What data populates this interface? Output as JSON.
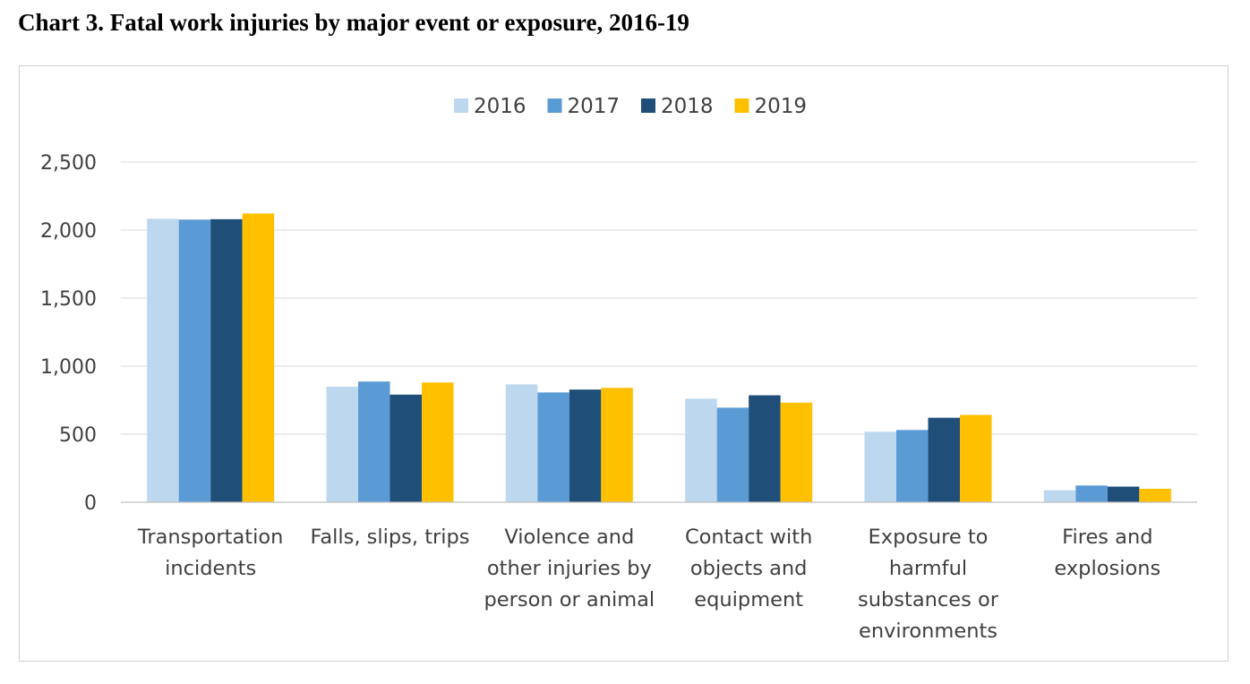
{
  "chart_data": {
    "type": "bar",
    "title": "Chart 3. Fatal work injuries by major event or exposure, 2016-19",
    "categories": [
      [
        "Transportation",
        "incidents"
      ],
      [
        "Falls, slips, trips"
      ],
      [
        "Violence and",
        "other injuries by",
        "person or animal"
      ],
      [
        "Contact with",
        "objects and",
        "equipment"
      ],
      [
        "Exposure to",
        "harmful",
        "substances or",
        "environments"
      ],
      [
        "Fires and",
        "explosions"
      ]
    ],
    "series": [
      {
        "name": "2016",
        "color": "#bdd7ee",
        "values": [
          2083,
          849,
          866,
          761,
          518,
          88
        ]
      },
      {
        "name": "2017",
        "color": "#5b9bd5",
        "values": [
          2077,
          887,
          807,
          695,
          531,
          123
        ]
      },
      {
        "name": "2018",
        "color": "#1f4e79",
        "values": [
          2080,
          791,
          828,
          786,
          621,
          115
        ]
      },
      {
        "name": "2019",
        "color": "#ffc000",
        "values": [
          2122,
          880,
          841,
          732,
          642,
          99
        ]
      }
    ],
    "ylim": [
      0,
      2500
    ],
    "yticks": [
      0,
      500,
      1000,
      1500,
      2000,
      2500
    ],
    "ytick_labels": [
      "0",
      "500",
      "1,000",
      "1,500",
      "2,000",
      "2,500"
    ],
    "grid": true,
    "legend_position": "top-center"
  }
}
